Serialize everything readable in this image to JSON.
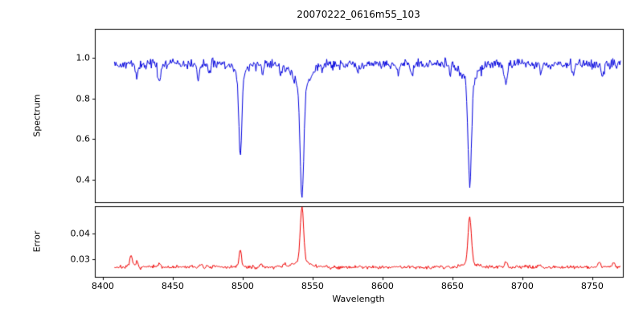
{
  "chart_data": {
    "type": "line",
    "title": "20070222_0616m55_103",
    "xlabel": "Wavelength",
    "xlim": [
      8394.3,
      8771.9
    ],
    "xticks": [
      8400,
      8450,
      8500,
      8600,
      8650,
      8700,
      8750
    ],
    "xticks_all": [
      8400,
      8450,
      8500,
      8550,
      8600,
      8650,
      8700,
      8750
    ],
    "grid": false,
    "legend": "none",
    "panels": [
      {
        "ylabel": "Spectrum",
        "ylim": [
          0.29,
          1.141
        ],
        "yticks": [
          0.4,
          0.6,
          0.8,
          1.0
        ],
        "ytick_labels": [
          "0.4",
          "0.6",
          "0.8",
          "1.0"
        ],
        "series": {
          "name": "spectrum",
          "color": "#0000dd",
          "x_range": [
            8408,
            8770
          ],
          "continuum": 0.97,
          "noise_sigma": 0.012,
          "major_absorption_lines": [
            {
              "center": 8498.0,
              "min_flux": 0.52,
              "core_depth": 0.4,
              "core_sigma": 1.0,
              "wing_depth": 0.06,
              "wing_sigma": 4.0
            },
            {
              "center": 8542.1,
              "min_flux": 0.32,
              "core_depth": 0.55,
              "core_sigma": 1.3,
              "wing_depth": 0.11,
              "wing_sigma": 6.0
            },
            {
              "center": 8662.1,
              "min_flux": 0.38,
              "core_depth": 0.5,
              "core_sigma": 1.2,
              "wing_depth": 0.09,
              "wing_sigma": 5.0
            }
          ],
          "minor_absorption_lines": [
            {
              "center": 8424,
              "depth": 0.07,
              "sigma": 0.8
            },
            {
              "center": 8440,
              "depth": 0.09,
              "sigma": 0.9
            },
            {
              "center": 8468,
              "depth": 0.08,
              "sigma": 0.8
            },
            {
              "center": 8476,
              "depth": 0.05,
              "sigma": 0.8
            },
            {
              "center": 8514,
              "depth": 0.04,
              "sigma": 0.7
            },
            {
              "center": 8527,
              "depth": 0.06,
              "sigma": 0.8
            },
            {
              "center": 8556,
              "depth": 0.03,
              "sigma": 0.7
            },
            {
              "center": 8582,
              "depth": 0.04,
              "sigma": 0.8
            },
            {
              "center": 8611,
              "depth": 0.05,
              "sigma": 0.8
            },
            {
              "center": 8621,
              "depth": 0.05,
              "sigma": 0.8
            },
            {
              "center": 8648,
              "depth": 0.04,
              "sigma": 0.7
            },
            {
              "center": 8688,
              "depth": 0.1,
              "sigma": 0.9
            },
            {
              "center": 8713,
              "depth": 0.05,
              "sigma": 0.8
            },
            {
              "center": 8736,
              "depth": 0.05,
              "sigma": 0.8
            },
            {
              "center": 8757,
              "depth": 0.07,
              "sigma": 0.8
            }
          ]
        }
      },
      {
        "ylabel": "Error",
        "ylim": [
          0.0233,
          0.0503
        ],
        "yticks": [
          0.03,
          0.04
        ],
        "ytick_labels": [
          "0.03",
          "0.04"
        ],
        "series": {
          "name": "error",
          "color": "#ee0000",
          "x_range": [
            8408,
            8770
          ],
          "baseline": 0.0272,
          "noise_sigma": 0.00035,
          "peaks": [
            {
              "center": 8420.0,
              "height": 0.0045,
              "sigma": 0.9
            },
            {
              "center": 8424.0,
              "height": 0.0018,
              "sigma": 0.8
            },
            {
              "center": 8440.0,
              "height": 0.0012,
              "sigma": 0.8
            },
            {
              "center": 8470.0,
              "height": 0.0013,
              "sigma": 0.8
            },
            {
              "center": 8498.0,
              "height": 0.006,
              "sigma": 1.0
            },
            {
              "center": 8513.0,
              "height": 0.0008,
              "sigma": 0.8
            },
            {
              "center": 8530.0,
              "height": 0.001,
              "sigma": 0.8
            },
            {
              "center": 8542.1,
              "height": 0.021,
              "sigma": 1.2
            },
            {
              "center": 8542.1,
              "height": 0.002,
              "sigma": 6.0
            },
            {
              "center": 8662.1,
              "height": 0.018,
              "sigma": 1.2
            },
            {
              "center": 8662.1,
              "height": 0.0015,
              "sigma": 5.0
            },
            {
              "center": 8688.0,
              "height": 0.0018,
              "sigma": 0.9
            },
            {
              "center": 8712.0,
              "height": 0.001,
              "sigma": 0.8
            },
            {
              "center": 8755.0,
              "height": 0.0022,
              "sigma": 0.9
            },
            {
              "center": 8765.0,
              "height": 0.002,
              "sigma": 0.9
            }
          ]
        }
      }
    ]
  }
}
